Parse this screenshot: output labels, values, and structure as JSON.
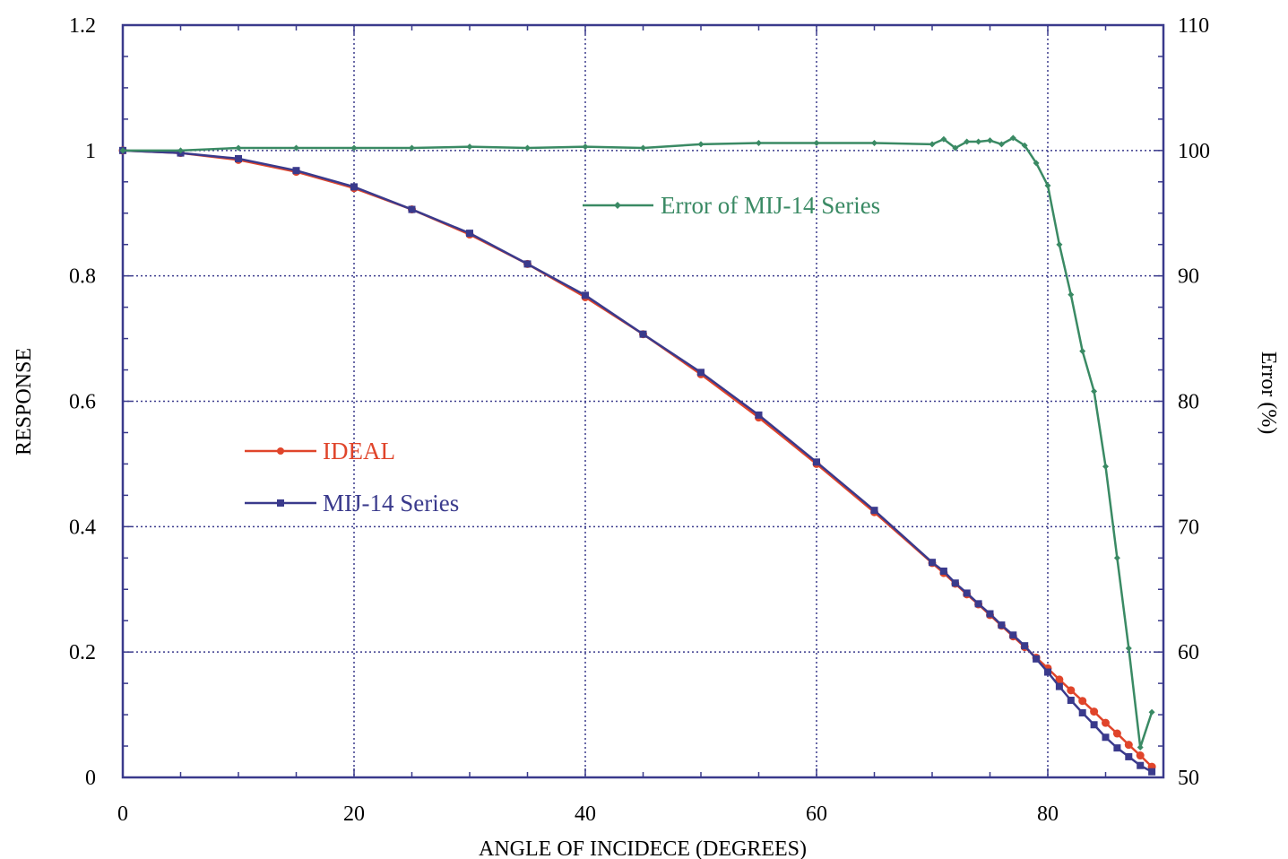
{
  "chart_data": {
    "type": "line",
    "title": "",
    "xlabel": "ANGLE OF INCIDECE (DEGREES)",
    "ylabel": "RESPONSE",
    "y2label": "Error (%)",
    "xlim": [
      0,
      90
    ],
    "ylim": [
      0,
      1.2
    ],
    "y2lim": [
      50,
      110
    ],
    "x_ticks": [
      "0",
      "20",
      "40",
      "60",
      "80"
    ],
    "y_ticks": [
      "0",
      "0.2",
      "0.4",
      "0.6",
      "0.8",
      "1",
      "1.2"
    ],
    "y2_ticks": [
      "50",
      "60",
      "70",
      "80",
      "90",
      "100",
      "110"
    ],
    "grid": true,
    "series": [
      {
        "name": "IDEAL",
        "axis": "left",
        "color": "#e0452b",
        "marker": "circle",
        "x": [
          0,
          5,
          10,
          15,
          20,
          25,
          30,
          35,
          40,
          45,
          50,
          55,
          60,
          65,
          70,
          71,
          72,
          73,
          74,
          75,
          76,
          77,
          78,
          79,
          80,
          81,
          82,
          83,
          84,
          85,
          86,
          87,
          88,
          89
        ],
        "values": [
          1.0,
          0.996,
          0.985,
          0.966,
          0.94,
          0.906,
          0.866,
          0.819,
          0.766,
          0.707,
          0.643,
          0.574,
          0.5,
          0.423,
          0.342,
          0.326,
          0.309,
          0.292,
          0.276,
          0.259,
          0.242,
          0.225,
          0.208,
          0.191,
          0.174,
          0.156,
          0.139,
          0.122,
          0.105,
          0.087,
          0.07,
          0.052,
          0.035,
          0.017
        ]
      },
      {
        "name": "MIJ-14 Series",
        "axis": "left",
        "color": "#3a3a8c",
        "marker": "square",
        "x": [
          0,
          5,
          10,
          15,
          20,
          25,
          30,
          35,
          40,
          45,
          50,
          55,
          60,
          65,
          70,
          71,
          72,
          73,
          74,
          75,
          76,
          77,
          78,
          79,
          80,
          81,
          82,
          83,
          84,
          85,
          86,
          87,
          88,
          89
        ],
        "values": [
          1.0,
          0.996,
          0.987,
          0.968,
          0.942,
          0.906,
          0.868,
          0.819,
          0.769,
          0.707,
          0.646,
          0.578,
          0.503,
          0.426,
          0.343,
          0.329,
          0.31,
          0.294,
          0.277,
          0.261,
          0.243,
          0.227,
          0.21,
          0.189,
          0.168,
          0.145,
          0.123,
          0.103,
          0.084,
          0.064,
          0.047,
          0.033,
          0.019,
          0.009
        ]
      },
      {
        "name": "Error of MIJ-14 Series",
        "axis": "right",
        "color": "#3a8a64",
        "marker": "diamond",
        "x": [
          0,
          5,
          10,
          15,
          20,
          25,
          30,
          35,
          40,
          45,
          50,
          55,
          60,
          65,
          70,
          71,
          72,
          73,
          74,
          75,
          76,
          77,
          78,
          79,
          80,
          81,
          82,
          83,
          84,
          85,
          86,
          87,
          88,
          89
        ],
        "values": [
          100,
          100,
          100.2,
          100.2,
          100.2,
          100.2,
          100.3,
          100.2,
          100.3,
          100.2,
          100.5,
          100.6,
          100.6,
          100.6,
          100.5,
          100.9,
          100.2,
          100.7,
          100.7,
          100.8,
          100.5,
          101.0,
          100.4,
          99.0,
          97.2,
          92.5,
          88.5,
          84.0,
          80.8,
          74.8,
          67.5,
          60.3,
          52.4,
          55.2
        ]
      }
    ],
    "legend_placement": "inside-plot"
  }
}
